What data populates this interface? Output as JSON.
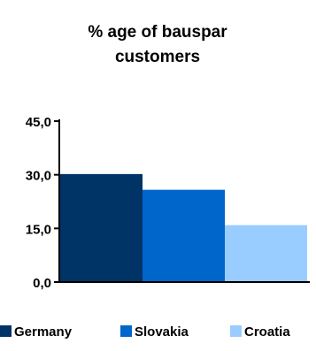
{
  "chart_data": {
    "type": "bar",
    "title_lines": [
      "% age of bauspar",
      "customers"
    ],
    "categories": [
      ""
    ],
    "series": [
      {
        "name": "Germany",
        "values": [
          30.2
        ],
        "color": "#003366"
      },
      {
        "name": "Slovakia",
        "values": [
          25.8
        ],
        "color": "#0066CC"
      },
      {
        "name": "Croatia",
        "values": [
          15.9
        ],
        "color": "#99CCFF"
      }
    ],
    "ylim": [
      0,
      45
    ],
    "yticks": [
      "0,0",
      "15,0",
      "30,0",
      "45,0"
    ],
    "ytick_values": [
      0,
      15,
      30,
      45
    ],
    "xlabel": "",
    "ylabel": "",
    "grid": false,
    "legend_position": "bottom"
  }
}
